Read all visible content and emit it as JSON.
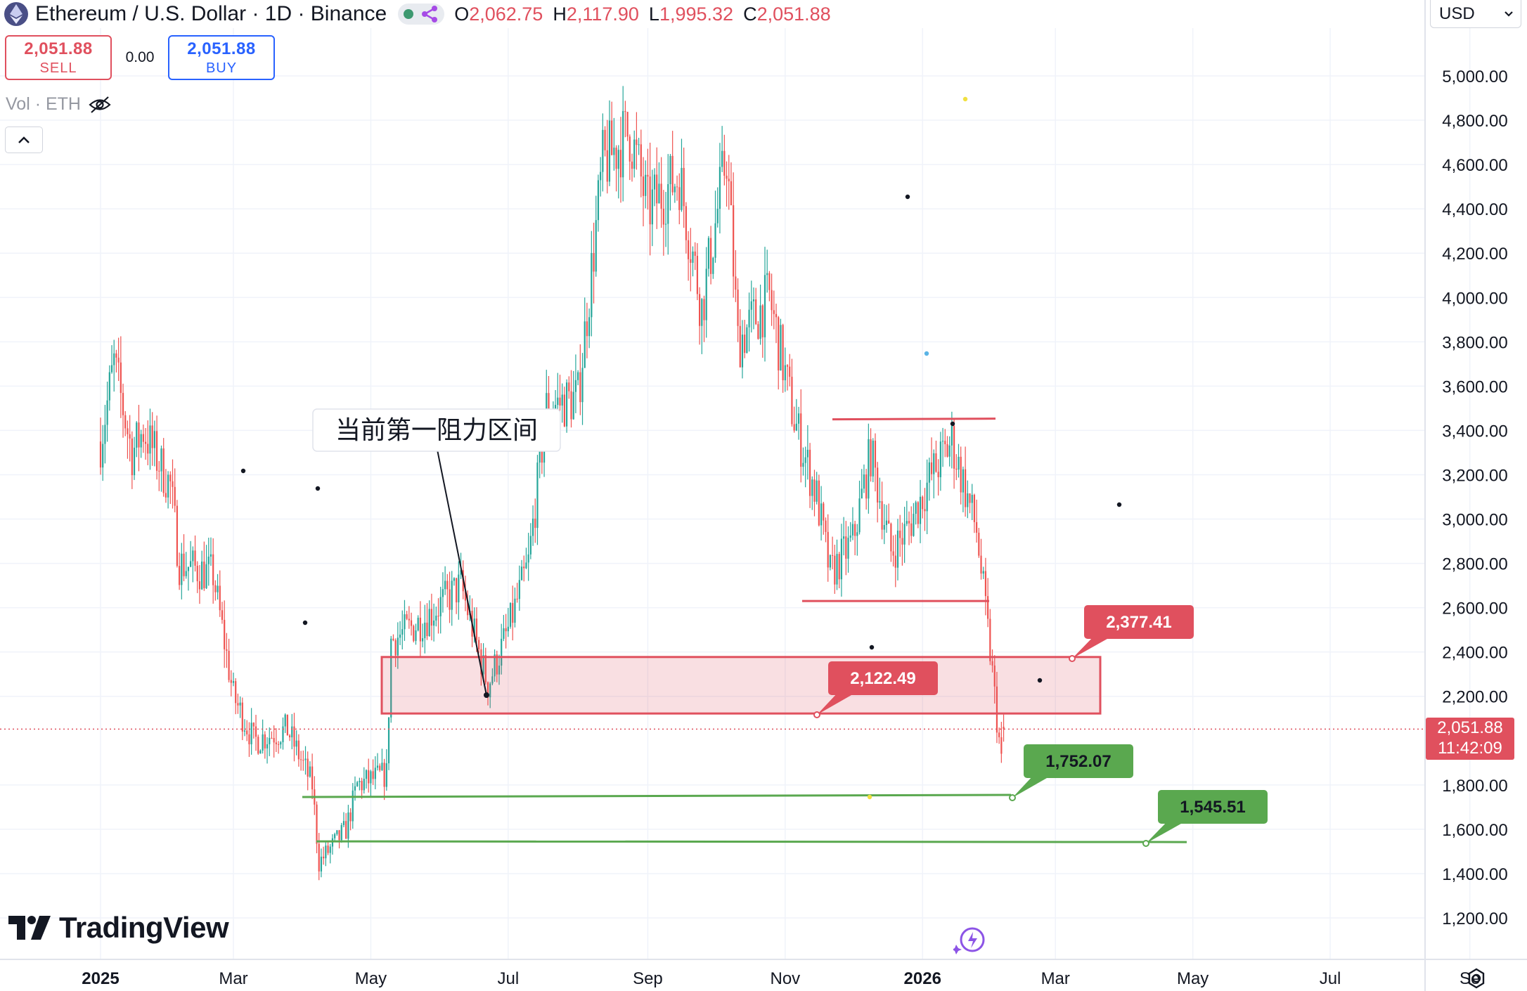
{
  "header": {
    "title": "Ethereum / U.S. Dollar · 1D · Binance",
    "ohlc": [
      {
        "key": "O",
        "value": "2,062.75"
      },
      {
        "key": "H",
        "value": "2,117.90"
      },
      {
        "key": "L",
        "value": "1,995.32"
      },
      {
        "key": "C",
        "value": "2,051.88"
      }
    ]
  },
  "trade": {
    "sell_price": "2,051.88",
    "sell_label": "SELL",
    "spread": "0.00",
    "buy_price": "2,051.88",
    "buy_label": "BUY"
  },
  "volume_label": "Vol · ETH",
  "currency": "USD",
  "last_price": {
    "price": "2,051.88",
    "countdown": "11:42:09"
  },
  "brand": "TradingView",
  "colors": {
    "up": "#26a69a",
    "down": "#ef5350",
    "annotation_red": "#e0505e",
    "annotation_green": "#5aa84f"
  },
  "icons": [
    "ethereum-logo-icon",
    "status-dot-icon",
    "connection-icon",
    "eye-off-icon",
    "chevron-up-icon",
    "chevron-down-icon",
    "tradingview-logo-icon",
    "quick-action-icon",
    "settings-icon"
  ],
  "chart_data": {
    "type": "candlestick",
    "x_ticks": [
      "2025",
      "Mar",
      "May",
      "Jul",
      "Sep",
      "Nov",
      "2026",
      "Mar",
      "May",
      "Jul",
      "Se"
    ],
    "y_ticks": [
      "1,200.00",
      "1,400.00",
      "1,600.00",
      "1,800.00",
      "2,200.00",
      "2,400.00",
      "2,600.00",
      "2,800.00",
      "3,000.00",
      "3,200.00",
      "3,400.00",
      "3,600.00",
      "3,800.00",
      "4,000.00",
      "4,200.00",
      "4,400.00",
      "4,600.00",
      "4,800.00",
      "5,000.00"
    ],
    "y_range": [
      1100,
      5200
    ],
    "approx_close_path": [
      {
        "date": "2025-01-01",
        "close": 3350
      },
      {
        "date": "2025-01-07",
        "close": 3700
      },
      {
        "date": "2025-01-15",
        "close": 3300
      },
      {
        "date": "2025-01-20",
        "close": 3400
      },
      {
        "date": "2025-02-01",
        "close": 3150
      },
      {
        "date": "2025-02-05",
        "close": 2800
      },
      {
        "date": "2025-02-20",
        "close": 2750
      },
      {
        "date": "2025-03-01",
        "close": 2200
      },
      {
        "date": "2025-03-10",
        "close": 2000
      },
      {
        "date": "2025-03-25",
        "close": 2050
      },
      {
        "date": "2025-04-05",
        "close": 1800
      },
      {
        "date": "2025-04-08",
        "close": 1450
      },
      {
        "date": "2025-04-20",
        "close": 1600
      },
      {
        "date": "2025-04-25",
        "close": 1800
      },
      {
        "date": "2025-05-08",
        "close": 1850
      },
      {
        "date": "2025-05-10",
        "close": 2450
      },
      {
        "date": "2025-05-25",
        "close": 2550
      },
      {
        "date": "2025-06-10",
        "close": 2700
      },
      {
        "date": "2025-06-22",
        "close": 2250
      },
      {
        "date": "2025-07-01",
        "close": 2500
      },
      {
        "date": "2025-07-10",
        "close": 2800
      },
      {
        "date": "2025-07-18",
        "close": 3500
      },
      {
        "date": "2025-08-01",
        "close": 3550
      },
      {
        "date": "2025-08-12",
        "close": 4600
      },
      {
        "date": "2025-08-24",
        "close": 4750
      },
      {
        "date": "2025-09-01",
        "close": 4400
      },
      {
        "date": "2025-09-15",
        "close": 4550
      },
      {
        "date": "2025-09-25",
        "close": 3950
      },
      {
        "date": "2025-10-06",
        "close": 4650
      },
      {
        "date": "2025-10-11",
        "close": 3800
      },
      {
        "date": "2025-10-25",
        "close": 4000
      },
      {
        "date": "2025-11-05",
        "close": 3450
      },
      {
        "date": "2025-11-15",
        "close": 3100
      },
      {
        "date": "2025-11-21",
        "close": 2750
      },
      {
        "date": "2025-12-01",
        "close": 2900
      },
      {
        "date": "2025-12-09",
        "close": 3300
      },
      {
        "date": "2025-12-18",
        "close": 2850
      },
      {
        "date": "2025-12-25",
        "close": 2950
      },
      {
        "date": "2026-01-05",
        "close": 3200
      },
      {
        "date": "2026-01-14",
        "close": 3350
      },
      {
        "date": "2026-01-25",
        "close": 2950
      },
      {
        "date": "2026-01-31",
        "close": 2400
      },
      {
        "date": "2026-02-05",
        "close": 1900
      },
      {
        "date": "2026-02-06",
        "close": 2051.88
      }
    ],
    "annotations": {
      "callout_text": "当前第一阻力区间",
      "resistance_zone": {
        "low": 2122.49,
        "high": 2377.41
      },
      "price_labels": [
        {
          "value": "2,377.41",
          "kind": "resistance"
        },
        {
          "value": "2,122.49",
          "kind": "resistance"
        },
        {
          "value": "1,752.07",
          "kind": "support"
        },
        {
          "value": "1,545.51",
          "kind": "support"
        }
      ],
      "range_top": 3450,
      "range_bottom": 2630,
      "support_lines": [
        1752.07,
        1545.51
      ]
    }
  }
}
